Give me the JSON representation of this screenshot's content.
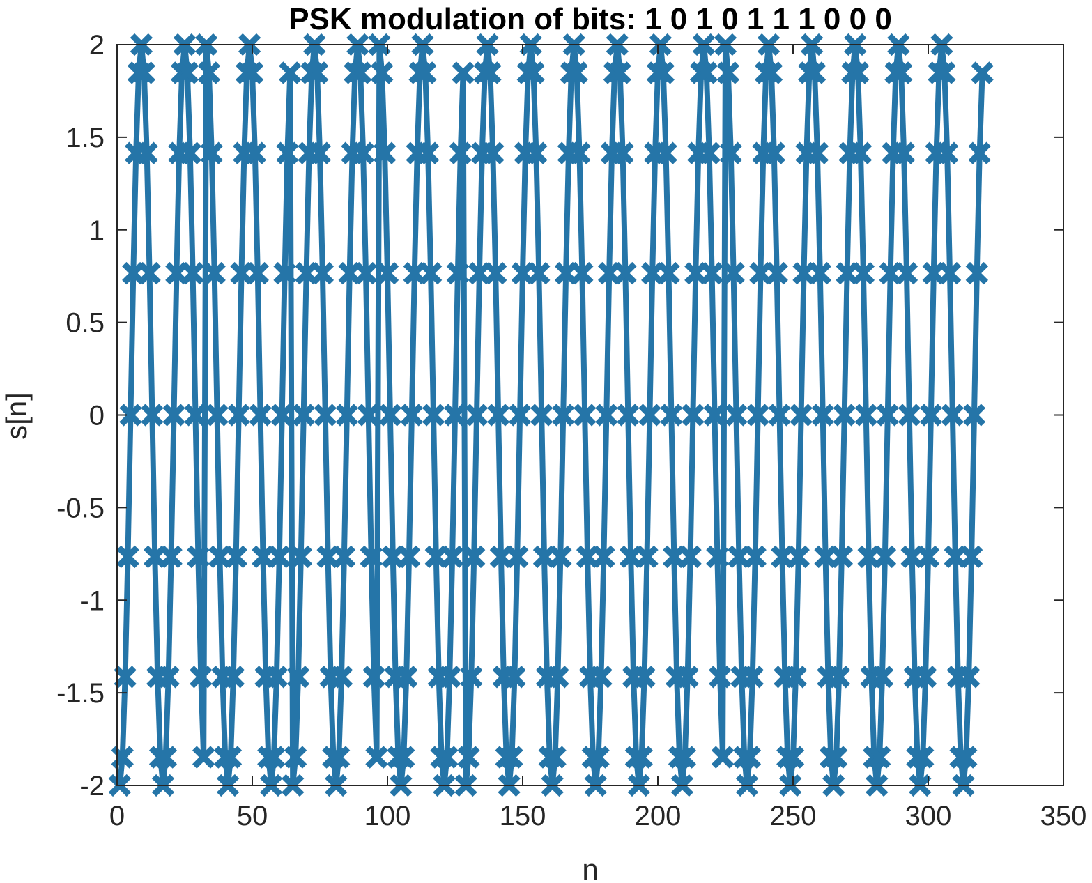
{
  "chart_data": {
    "type": "line",
    "title": "PSK modulation of bits: 1  0  1  0  1  1  1  0  0  0",
    "xlabel": "n",
    "ylabel": "s[n]",
    "xlim": [
      0,
      350
    ],
    "ylim": [
      -2,
      2
    ],
    "xticks": [
      "0",
      "50",
      "100",
      "150",
      "200",
      "250",
      "300",
      "350"
    ],
    "yticks": [
      "-2",
      "-1.5",
      "-1",
      "-0.5",
      "0",
      "0.5",
      "1",
      "1.5",
      "2"
    ],
    "grid": false,
    "bits": [
      1,
      0,
      1,
      0,
      1,
      1,
      1,
      0,
      0,
      0
    ],
    "amplitude": 2,
    "samples_per_bit": 32,
    "samples_per_period": 16,
    "marker": "x",
    "color": "#2575a8",
    "line_width": 8,
    "n_points": 320
  }
}
